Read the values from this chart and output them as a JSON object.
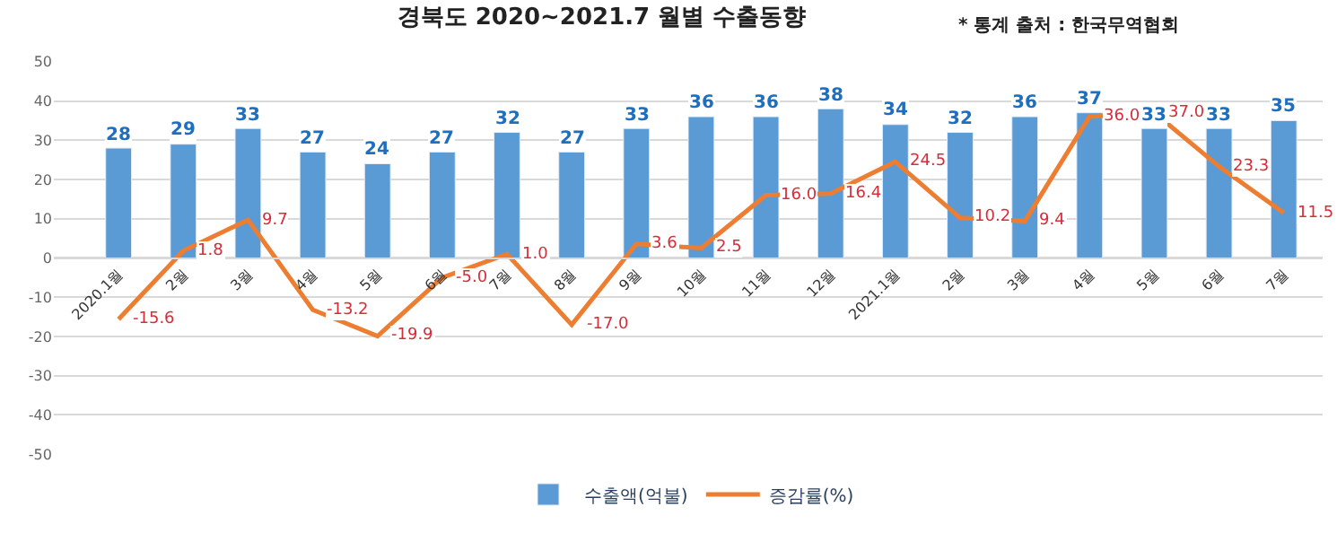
{
  "chart_data": {
    "type": "bar",
    "title": "경북도 2020~2021.7 월별 수출동향",
    "annotations": [
      "* 통계 출처 : 한국무역협회"
    ],
    "categories": [
      "2020.1월",
      "2월",
      "3월",
      "4월",
      "5월",
      "6월",
      "7월",
      "8월",
      "9월",
      "10월",
      "11월",
      "12월",
      "2021.1월",
      "2월",
      "3월",
      "4월",
      "5월",
      "6월",
      "7월"
    ],
    "series": [
      {
        "name": "수출액(억불)",
        "color": "#5b9bd5",
        "values": [
          28,
          29,
          33,
          27,
          24,
          27,
          32,
          27,
          33,
          36,
          36,
          38,
          34,
          32,
          36,
          37,
          33,
          33,
          35
        ]
      },
      {
        "name": "증감률(%)",
        "type": "line",
        "color": "#ed7d31",
        "values": [
          -15.6,
          1.8,
          9.7,
          -13.2,
          -19.9,
          -5.0,
          1.0,
          -17.0,
          3.6,
          2.5,
          16.0,
          16.4,
          24.5,
          10.2,
          9.4,
          36.0,
          37.0,
          23.3,
          11.5
        ],
        "value_labels": [
          "-15.6",
          "1.8",
          "9.7",
          "-13.2",
          "-19.9",
          "-5.0",
          "1.0",
          "-17.0",
          "3.6",
          "2.5",
          "16.0",
          "16.4",
          "24.5",
          "10.2",
          "9.4",
          "36.0",
          "37.0",
          "23.3",
          "11.5"
        ]
      }
    ],
    "data_labels": true,
    "ylim": [
      -50,
      50
    ],
    "yticks": [
      -50,
      -40,
      -30,
      -20,
      -10,
      0,
      10,
      20,
      30,
      40,
      50
    ],
    "grid": "y",
    "legend": "bottom",
    "marker": "none",
    "line_style": "solid"
  }
}
